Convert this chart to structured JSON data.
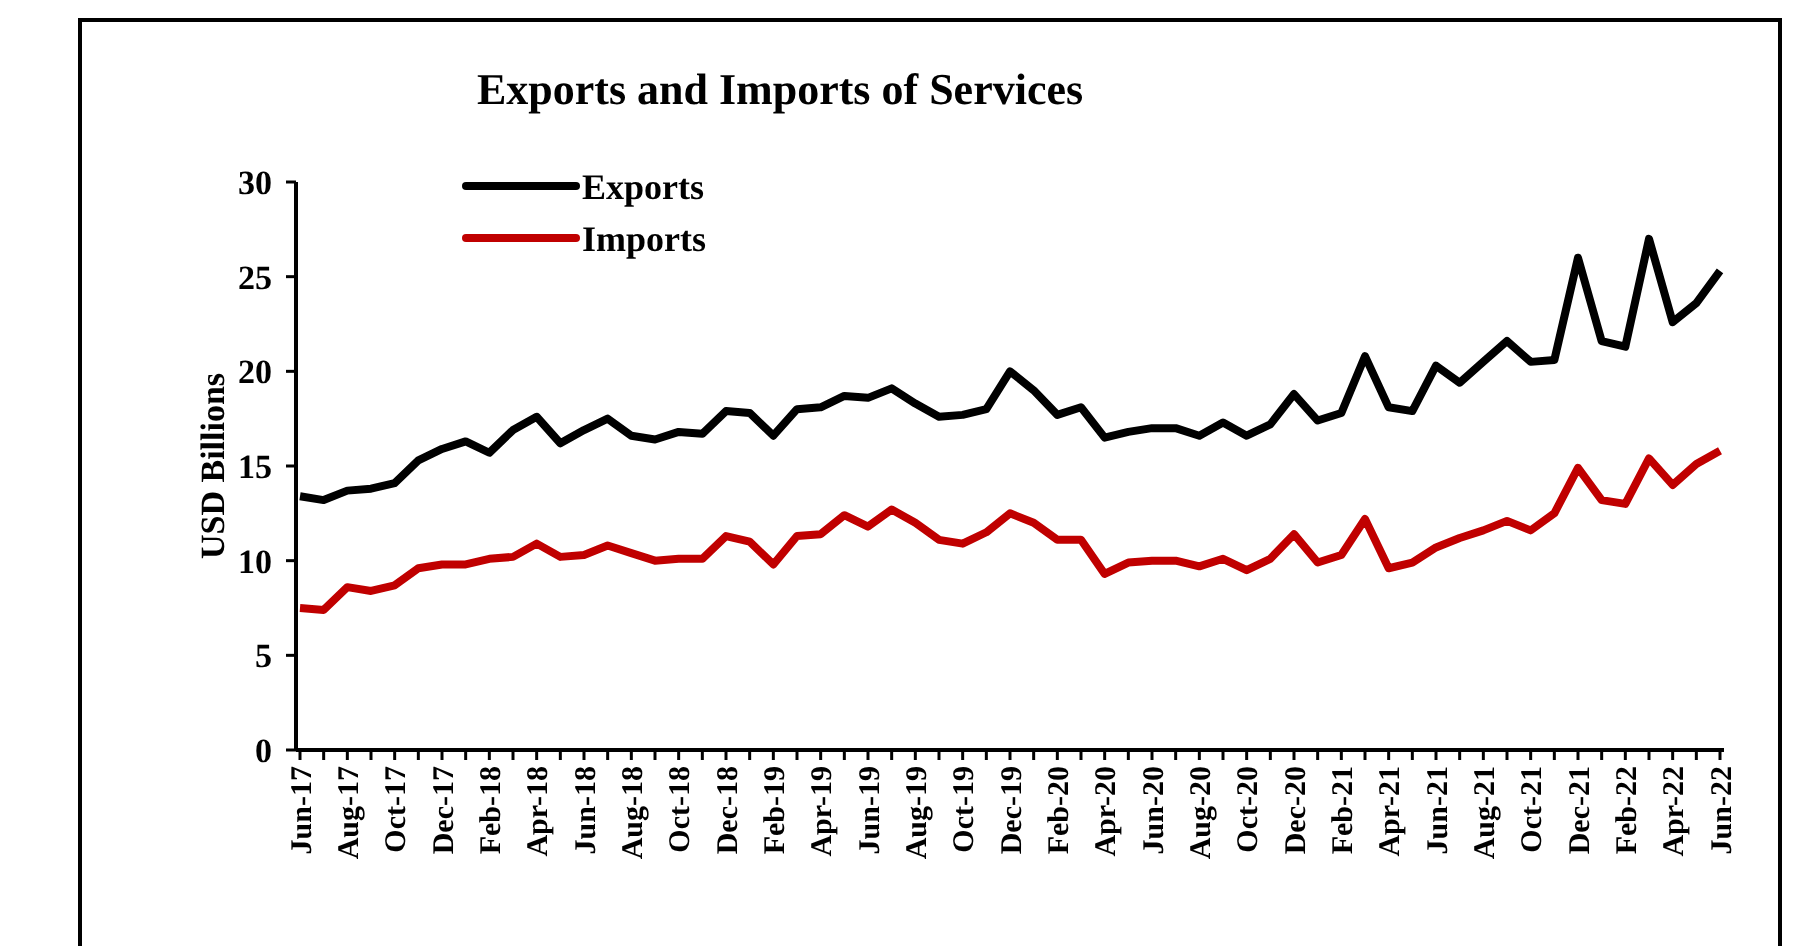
{
  "chart_data": {
    "type": "line",
    "title": "Exports and Imports of Services",
    "ylabel": "USD Billions",
    "categories": [
      "Jun-17",
      null,
      "Aug-17",
      null,
      "Oct-17",
      null,
      "Dec-17",
      null,
      "Feb-18",
      null,
      "Apr-18",
      null,
      "Jun-18",
      null,
      "Aug-18",
      null,
      "Oct-18",
      null,
      "Dec-18",
      null,
      "Feb-19",
      null,
      "Apr-19",
      null,
      "Jun-19",
      null,
      "Aug-19",
      null,
      "Oct-19",
      null,
      "Dec-19",
      null,
      "Feb-20",
      null,
      "Apr-20",
      null,
      "Jun-20",
      null,
      "Aug-20",
      null,
      "Oct-20",
      null,
      "Dec-20",
      null,
      "Feb-21",
      null,
      "Apr-21",
      null,
      "Jun-21",
      null,
      "Aug-21",
      null,
      "Oct-21",
      null,
      "Dec-21",
      null,
      "Feb-22",
      null,
      "Apr-22",
      null,
      "Jun-22"
    ],
    "series": [
      {
        "name": "Exports",
        "color": "#000000",
        "values": [
          13.4,
          13.2,
          13.7,
          13.8,
          14.1,
          15.3,
          15.9,
          16.3,
          15.7,
          16.9,
          17.6,
          16.2,
          16.9,
          17.5,
          16.6,
          16.4,
          16.8,
          16.7,
          17.9,
          17.8,
          16.6,
          18.0,
          18.1,
          18.7,
          18.6,
          19.1,
          18.3,
          17.6,
          17.7,
          18.0,
          20.0,
          19.0,
          17.7,
          18.1,
          16.5,
          16.8,
          17.0,
          17.0,
          16.6,
          17.3,
          16.6,
          17.2,
          18.8,
          17.4,
          17.8,
          20.8,
          18.1,
          17.9,
          20.3,
          19.4,
          20.5,
          21.6,
          20.5,
          20.6,
          26.0,
          21.6,
          21.3,
          27.0,
          22.6,
          23.6,
          25.3
        ]
      },
      {
        "name": "Imports",
        "color": "#c00000",
        "values": [
          7.5,
          7.4,
          8.6,
          8.4,
          8.7,
          9.6,
          9.8,
          9.8,
          10.1,
          10.2,
          10.9,
          10.2,
          10.3,
          10.8,
          10.4,
          10.0,
          10.1,
          10.1,
          11.3,
          11.0,
          9.8,
          11.3,
          11.4,
          12.4,
          11.8,
          12.7,
          12.0,
          11.1,
          10.9,
          11.5,
          12.5,
          12.0,
          11.1,
          11.1,
          9.3,
          9.9,
          10.0,
          10.0,
          9.7,
          10.1,
          9.5,
          10.1,
          11.4,
          9.9,
          10.3,
          12.2,
          9.6,
          9.9,
          10.7,
          11.2,
          11.6,
          12.1,
          11.6,
          12.5,
          14.9,
          13.2,
          13.0,
          15.4,
          14.0,
          15.1,
          15.8
        ]
      }
    ],
    "ylim": [
      0,
      30
    ],
    "yticks": [
      0,
      5,
      10,
      15,
      20,
      25,
      30
    ],
    "grid": false,
    "legend": "top left",
    "marker": "none",
    "line_style": "solid"
  }
}
